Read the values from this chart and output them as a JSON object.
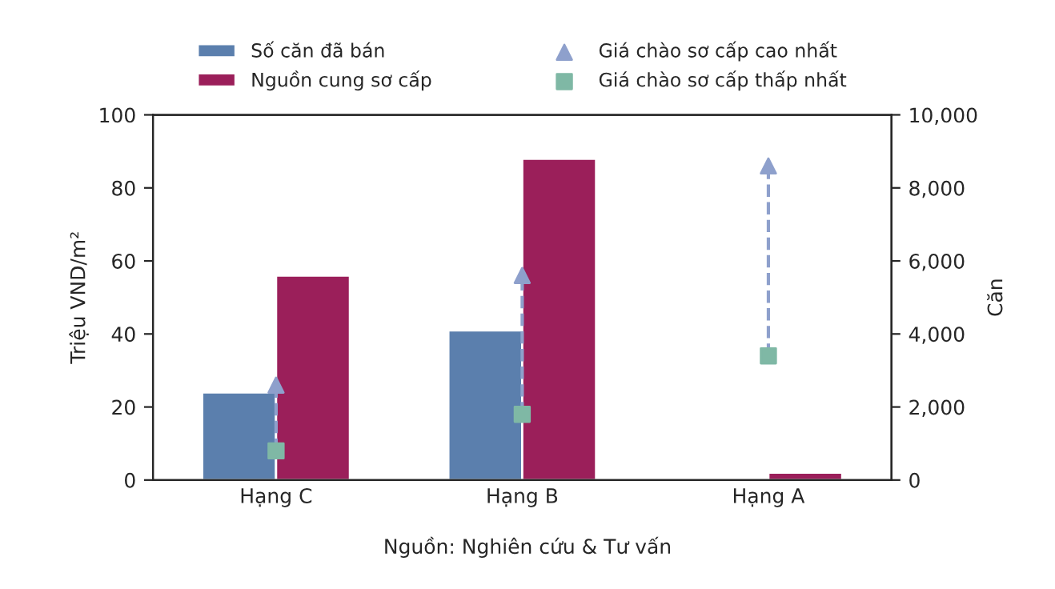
{
  "chart_data": {
    "type": "bar",
    "ylabel": "Triệu VND/m²",
    "y2label": "Căn",
    "categories": [
      "Hạng C",
      "Hạng B",
      "Hạng A"
    ],
    "series": [
      {
        "name": "Số căn đã bán",
        "color": "#5b7fad",
        "axis": "y2",
        "values": [
          2400,
          4100,
          50
        ]
      },
      {
        "name": "Nguồn cung sơ cấp",
        "color": "#9b1f5a",
        "axis": "y2",
        "values": [
          5600,
          8800,
          200
        ]
      },
      {
        "name": "Giá chào sơ cấp cao nhất",
        "type": "scatter",
        "marker": "triangle",
        "color": "#8ea0cc",
        "values": [
          26,
          56,
          86
        ]
      },
      {
        "name": "Giá chào sơ cấp thấp nhất",
        "type": "scatter",
        "marker": "square",
        "color": "#7fb8a5",
        "values": [
          8,
          18,
          34
        ]
      }
    ],
    "ylim": [
      0,
      100
    ],
    "yticks": [
      0,
      20,
      40,
      60,
      80,
      100
    ],
    "y2lim": [
      0,
      10000
    ],
    "y2ticks": [
      0,
      {
        "value": 2000,
        "label": "2,000"
      },
      {
        "value": 4000,
        "label": "4,000"
      },
      {
        "value": 6000,
        "label": "6,000"
      },
      {
        "value": 8000,
        "label": "8,000"
      },
      {
        "value": 10000,
        "label": "10,000"
      }
    ],
    "legend": "top",
    "annotations": [
      "Nguồn: Nghiên cứu & Tư vấn"
    ]
  }
}
